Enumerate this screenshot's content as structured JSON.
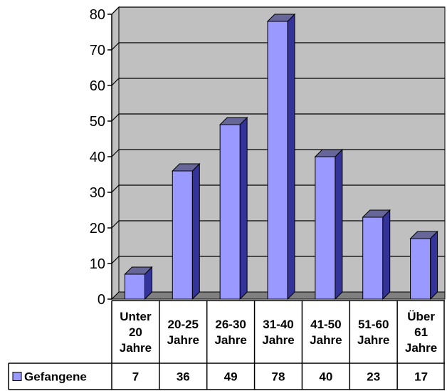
{
  "chart_data": {
    "type": "bar",
    "categories": [
      [
        "Unter",
        "20",
        "Jahre"
      ],
      [
        "20-25",
        "Jahre"
      ],
      [
        "26-30",
        "Jahre"
      ],
      [
        "31-40",
        "Jahre"
      ],
      [
        "41-50",
        "Jahre"
      ],
      [
        "51-60",
        "Jahre"
      ],
      [
        "Über",
        "61",
        "Jahre"
      ]
    ],
    "series": [
      {
        "name": "Gefangene",
        "values": [
          7,
          36,
          49,
          78,
          40,
          23,
          17
        ]
      }
    ],
    "ylim": [
      0,
      80
    ],
    "yticks": [
      0,
      10,
      20,
      30,
      40,
      50,
      60,
      70,
      80
    ],
    "grid": true,
    "data_table": true,
    "three_d": true,
    "colors": {
      "bar_front": "#9999ff",
      "bar_side": "#333399",
      "bar_top": "#666699",
      "wall": "#c0c0c0",
      "floor": "#808080"
    }
  }
}
